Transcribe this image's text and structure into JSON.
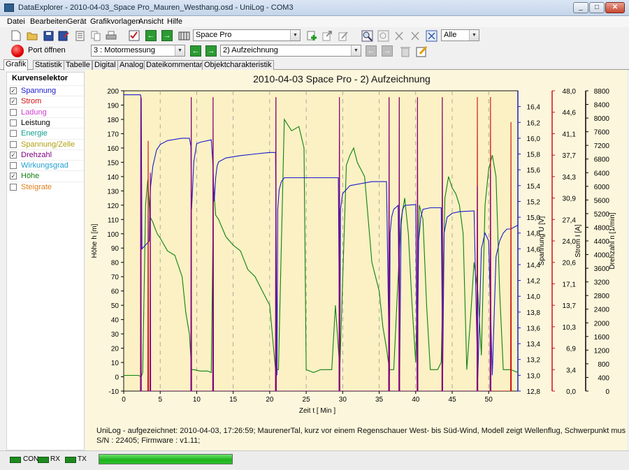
{
  "window": {
    "title": "DataExplorer  -  2010-04-03_Space Pro_Mauren_Westhang.osd  -  UniLog  -  COM3"
  },
  "menu": [
    "Datei",
    "Bearbeiten",
    "Gerät",
    "Grafikvorlagen",
    "Ansicht",
    "Hilfe"
  ],
  "toolbar": {
    "model_select": "Space Pro",
    "filter_select": "Alle",
    "port_label": "Port öffnen",
    "channel_select": "3 : Motormessung",
    "record_select": "2) Aufzeichnung"
  },
  "tabs": [
    "Grafik",
    "Statistik",
    "Tabelle",
    "Digital",
    "Analog",
    "Dateikommentar",
    "Objektcharakteristik"
  ],
  "selector": {
    "header": "Kurvenselektor",
    "items": [
      {
        "label": "Spannung",
        "checked": true,
        "color": "#1a1ad0"
      },
      {
        "label": "Strom",
        "checked": true,
        "color": "#d01010"
      },
      {
        "label": "Ladung",
        "checked": false,
        "color": "#d040d0"
      },
      {
        "label": "Leistung",
        "checked": false,
        "color": "#000000"
      },
      {
        "label": "Energie",
        "checked": false,
        "color": "#10a090"
      },
      {
        "label": "Spannung/Zelle",
        "checked": false,
        "color": "#b0a010"
      },
      {
        "label": "Drehzahl",
        "checked": true,
        "color": "#800080"
      },
      {
        "label": "Wirkungsgrad",
        "checked": false,
        "color": "#20a0d0"
      },
      {
        "label": "Höhe",
        "checked": true,
        "color": "#108010"
      },
      {
        "label": "Steigrate",
        "checked": false,
        "color": "#e08020"
      }
    ]
  },
  "chart_data": {
    "type": "line",
    "title": "2010-04-03 Space Pro - 2) Aufzeichnung",
    "xlabel": "Zeit  t  [ Min ]",
    "xlim": [
      0,
      54
    ],
    "xticks": [
      0,
      5,
      10,
      15,
      20,
      25,
      30,
      35,
      40,
      45,
      50
    ],
    "grid_x": [
      5,
      10,
      15,
      20,
      25,
      30,
      35,
      40,
      45,
      50
    ],
    "axes": {
      "hoehe": {
        "label": "Höhe  h  [m]",
        "lim": [
          -10,
          200
        ],
        "ticks": [
          -10,
          0,
          10,
          20,
          30,
          40,
          50,
          60,
          70,
          80,
          90,
          100,
          110,
          120,
          130,
          140,
          150,
          160,
          170,
          180,
          190,
          200
        ],
        "color": "#000000"
      },
      "spannung": {
        "label": "Spannung  U  [V]",
        "lim": [
          12.8,
          16.6
        ],
        "ticks": [
          "12,8",
          "13,0",
          "13,2",
          "13,4",
          "13,6",
          "13,8",
          "14,0",
          "14,2",
          "14,4",
          "14,6",
          "14,8",
          "15,0",
          "15,2",
          "15,4",
          "15,6",
          "15,8",
          "16,0",
          "16,2",
          "16,4"
        ],
        "color": "#1a1ad0"
      },
      "strom": {
        "label": "Strom  I  [A]",
        "lim": [
          0,
          48
        ],
        "ticks": [
          "0,0",
          "3,4",
          "6,9",
          "10,3",
          "13,7",
          "17,1",
          "20,6",
          "24,0",
          "27,4",
          "30,9",
          "34,3",
          "37,7",
          "41,1",
          "44,6",
          "48,0"
        ],
        "color": "#d01010"
      },
      "drehzahl": {
        "label": "Drehzahl  n  [1/min]",
        "lim": [
          0,
          8800
        ],
        "ticks": [
          0,
          400,
          800,
          1200,
          1600,
          2000,
          2400,
          2800,
          3200,
          3600,
          4000,
          4400,
          4800,
          5200,
          5600,
          6000,
          6400,
          6800,
          7200,
          7600,
          8000,
          8400,
          8800
        ],
        "color": "#000000"
      }
    },
    "series": [
      {
        "name": "Höhe",
        "axis": "hoehe",
        "color": "#108010",
        "x": [
          0,
          2,
          2.4,
          2.6,
          3.0,
          3.3,
          3.6,
          4.0,
          4.2,
          4.6,
          5.0,
          6.0,
          7.0,
          8.0,
          8.5,
          9.0,
          9.3,
          9.6,
          10.5,
          11.5,
          12.0,
          12.3,
          12.6,
          13.0,
          14.0,
          15.0,
          16.0,
          17.0,
          18.0,
          19.0,
          20.0,
          20.8,
          21.2,
          22.0,
          23.0,
          24.0,
          24.7,
          25.0,
          26.0,
          27.0,
          28.0,
          28.5,
          29.0,
          29.6,
          30.5,
          31.0,
          31.5,
          32.0,
          33.0,
          34.0,
          35.0,
          35.5,
          36.0,
          36.4,
          37.0,
          37.5,
          38.0,
          38.5,
          39.0,
          39.5,
          40.0,
          40.5,
          41.0,
          41.5,
          42.0,
          42.5,
          43.0,
          43.5,
          44.0,
          44.5,
          45.0,
          45.5,
          46.0,
          46.5,
          47.0,
          47.5,
          48.0,
          48.5,
          49.0,
          49.5,
          50.0,
          50.5,
          51.0,
          51.5,
          52.0,
          52.5,
          53.0,
          54.0
        ],
        "y": [
          1,
          1,
          0,
          3,
          120,
          138,
          112,
          108,
          105,
          100,
          97,
          88,
          85,
          70,
          45,
          30,
          5,
          5,
          4,
          4,
          3,
          133,
          113,
          110,
          98,
          92,
          88,
          75,
          70,
          60,
          50,
          5,
          5,
          180,
          172,
          175,
          160,
          5,
          3,
          5,
          5,
          5,
          50,
          5,
          148,
          155,
          160,
          150,
          140,
          80,
          60,
          35,
          20,
          5,
          5,
          60,
          110,
          125,
          100,
          50,
          10,
          120,
          110,
          50,
          5,
          5,
          5,
          10,
          125,
          140,
          132,
          128,
          120,
          100,
          5,
          40,
          80,
          60,
          15,
          120,
          145,
          155,
          140,
          60,
          5,
          5,
          5,
          3
        ]
      },
      {
        "name": "Spannung",
        "axis": "spannung",
        "color": "#1a1ad0",
        "x": [
          0,
          2.3,
          2.4,
          2.5,
          3.5,
          3.6,
          3.7,
          4.0,
          4.5,
          5.0,
          6.0,
          8.0,
          9.0,
          9.2,
          9.3,
          9.4,
          9.6,
          10.0,
          10.5,
          12.0,
          12.2,
          12.4,
          12.6,
          12.8,
          13.0,
          14.0,
          16.0,
          18.0,
          20.0,
          20.8,
          21.0,
          21.1,
          21.3,
          21.6,
          22.0,
          24.0,
          26.0,
          28.0,
          29.4,
          29.6,
          29.7,
          30.0,
          31.0,
          34.0,
          36.0,
          36.4,
          36.5,
          36.7,
          37.0,
          37.6,
          37.8,
          38.0,
          38.2,
          38.5,
          40.0,
          40.2,
          40.4,
          40.7,
          41.0,
          42.0,
          43.5,
          43.7,
          43.9,
          44.3,
          45.0,
          46.0,
          48.0,
          48.5,
          49.0,
          49.5,
          50.0,
          50.5,
          51.0,
          51.5,
          52.0,
          52.5,
          53.0,
          54.0
        ],
        "y": [
          16.55,
          16.55,
          16.5,
          14.6,
          14.7,
          15.2,
          15.4,
          15.65,
          15.85,
          15.92,
          15.97,
          16.0,
          16.0,
          15.9,
          15.1,
          15.3,
          15.7,
          15.93,
          15.95,
          15.98,
          15.7,
          15.2,
          15.5,
          15.65,
          15.7,
          15.75,
          15.78,
          15.8,
          15.82,
          15.82,
          13.0,
          15.1,
          15.35,
          15.45,
          15.5,
          15.5,
          15.5,
          15.5,
          15.5,
          13.0,
          15.1,
          15.3,
          15.4,
          15.45,
          15.45,
          13.0,
          14.8,
          15.0,
          15.1,
          15.15,
          13.0,
          14.9,
          15.1,
          15.15,
          15.16,
          12.9,
          14.7,
          15.0,
          15.1,
          15.12,
          15.12,
          13.0,
          14.8,
          15.0,
          15.05,
          15.07,
          15.08,
          12.95,
          14.6,
          14.8,
          14.7,
          13.0,
          14.5,
          14.7,
          14.8,
          14.85,
          14.85,
          14.9
        ]
      },
      {
        "name": "Strom",
        "axis": "strom",
        "color": "#d01010",
        "x": [
          2.3,
          2.35,
          2.4,
          3.3,
          3.35,
          3.4,
          9.2,
          9.25,
          9.3,
          12.2,
          12.25,
          12.3,
          20.8,
          20.85,
          20.9,
          29.5,
          29.55,
          29.6,
          36.3,
          36.35,
          36.4,
          37.7,
          37.75,
          37.8,
          40.2,
          40.25,
          40.3,
          43.6,
          43.65,
          43.7,
          48.4,
          48.45,
          48.5,
          50.2,
          50.25,
          50.3,
          53.0,
          53.05,
          53.1
        ],
        "y": [
          0,
          47,
          0,
          0,
          40,
          0,
          0,
          47,
          0,
          0,
          47,
          0,
          0,
          47,
          0,
          0,
          47,
          0,
          0,
          47,
          0,
          0,
          47,
          0,
          0,
          47,
          0,
          0,
          47,
          0,
          0,
          47,
          0,
          0,
          47,
          0,
          0,
          43,
          0
        ]
      },
      {
        "name": "Drehzahl",
        "axis": "drehzahl",
        "color": "#800080",
        "x": [
          2.3,
          2.35,
          2.4,
          3.6,
          3.65,
          3.7,
          9.2,
          9.25,
          9.3,
          12.2,
          12.25,
          12.3,
          20.8,
          20.85,
          20.9,
          29.5,
          29.55,
          29.6,
          36.3,
          36.35,
          36.4,
          37.7,
          37.75,
          37.8,
          40.2,
          40.25,
          40.3,
          43.6,
          43.65,
          43.7,
          48.4,
          48.45,
          48.5,
          50.2,
          50.25,
          50.3
        ],
        "y": [
          0,
          8600,
          0,
          0,
          6400,
          0,
          0,
          8600,
          0,
          0,
          8600,
          0,
          0,
          8600,
          0,
          0,
          8600,
          0,
          0,
          8600,
          0,
          0,
          8600,
          0,
          0,
          8600,
          0,
          0,
          8600,
          0,
          0,
          6000,
          0,
          0,
          6500,
          0
        ]
      }
    ]
  },
  "comment": {
    "line1": "UniLog - aufgezeichnet: 2010-04-03, 17:26:59; MaurenerTal, kurz vor einem Regenschauer West- bis Süd-Wind, Modell zeigt Wellenflug, Schwerpunkt muss mehr nach",
    "line2": "S/N : 22405; Firmware : v1.11;"
  },
  "statusbar": {
    "con": "CON",
    "rx": "RX",
    "tx": "TX",
    "progress": 1.0
  }
}
